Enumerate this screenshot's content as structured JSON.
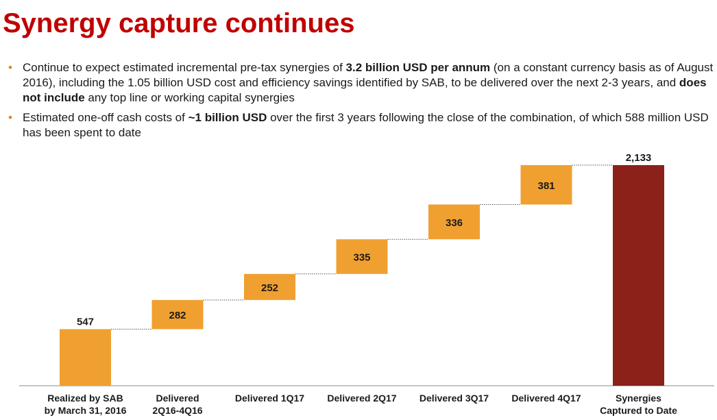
{
  "title": "Synergy capture continues",
  "bullets": [
    {
      "parts": [
        {
          "text": "Continue to expect estimated incremental pre-tax synergies of ",
          "bold": false
        },
        {
          "text": "3.2 billion USD per annum",
          "bold": true
        },
        {
          "text": " (on a constant currency basis as of August 2016), including the 1.05 billion USD cost and efficiency savings identified by SAB, to be delivered over the next 2-3 years, and ",
          "bold": false
        },
        {
          "text": "does not include",
          "bold": true
        },
        {
          "text": " any top line or working capital synergies",
          "bold": false
        }
      ]
    },
    {
      "parts": [
        {
          "text": "Estimated one-off cash costs of ",
          "bold": false
        },
        {
          "text": "~1 billion USD",
          "bold": true
        },
        {
          "text": " over the first 3 years following the close of the combination, of which 588 million USD has been spent to date",
          "bold": false
        }
      ]
    }
  ],
  "colors": {
    "title": "#c00000",
    "bullet": "#d2862f",
    "increment": "#f0a030",
    "total": "#8b2119",
    "connector": "#555555",
    "baseline": "#888888"
  },
  "chart_data": {
    "type": "bar",
    "subtype": "waterfall",
    "unit": "million USD",
    "categories": [
      [
        "Realized by SAB",
        "by March 31, 2016"
      ],
      [
        "Delivered",
        "2Q16-4Q16"
      ],
      [
        "Delivered 1Q17"
      ],
      [
        "Delivered 2Q17"
      ],
      [
        "Delivered 3Q17"
      ],
      [
        "Delivered 4Q17"
      ],
      [
        "Synergies",
        "Captured to Date"
      ]
    ],
    "values": [
      547,
      282,
      252,
      335,
      336,
      381,
      2133
    ],
    "value_labels": [
      "547",
      "282",
      "252",
      "335",
      "336",
      "381",
      "2,133"
    ],
    "kinds": [
      "increment",
      "increment",
      "increment",
      "increment",
      "increment",
      "increment",
      "total"
    ],
    "label_position": [
      "above",
      "inside",
      "inside",
      "inside",
      "inside",
      "inside",
      "above"
    ],
    "ylim": [
      0,
      2133
    ],
    "grid": false,
    "connectors": true
  }
}
